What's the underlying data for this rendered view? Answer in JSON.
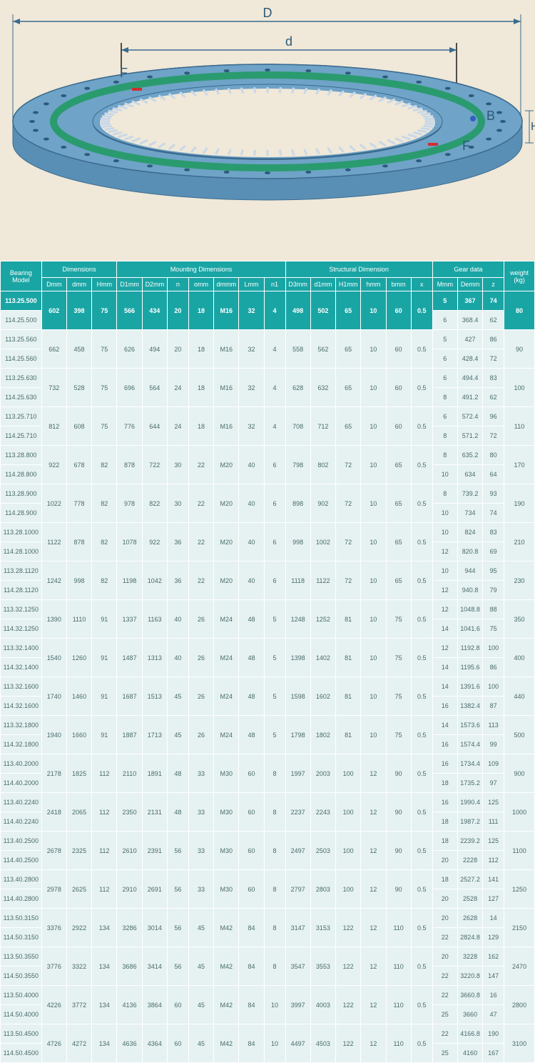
{
  "diagram": {
    "bg_color": "#f0e8d8",
    "ring_outer": "#6fa3c7",
    "ring_edge": "#3b6b8f",
    "ring_inner": "#2a9b6f",
    "teeth": "#ffffff",
    "hole": "#2d5a7a",
    "dim_line": "#3b6b8f",
    "labels": {
      "D": "D",
      "d": "d",
      "F1": "F",
      "F2": "F",
      "B": "B",
      "H": "H"
    },
    "label_fontsize": 16,
    "label_color": "#2d5a7a"
  },
  "table": {
    "header_bg": "#1aa5a5",
    "header_fg": "#ffffff",
    "cell_bg": "#e6f2f2",
    "cell_fg": "#4a6a6a",
    "groups": [
      {
        "label": "Bearing Model",
        "span": 1
      },
      {
        "label": "Dimensions",
        "span": 3
      },
      {
        "label": "Mounting Dimensions",
        "span": 7
      },
      {
        "label": "Structural Dimension",
        "span": 6
      },
      {
        "label": "Gear data",
        "span": 3
      },
      {
        "label": "weight (kg)",
        "span": 1
      }
    ],
    "cols": [
      "",
      "Dmm",
      "dmm",
      "Hmm",
      "D1mm",
      "D2mm",
      "n",
      "omm",
      "dmmm",
      "Lmm",
      "n1",
      "D3mm",
      "d1mm",
      "H1mm",
      "hmm",
      "bmm",
      "x",
      "Mmm",
      "Demm",
      "z",
      ""
    ],
    "pairs": [
      {
        "highlight": true,
        "models": [
          "113.25.500",
          "114.25.500"
        ],
        "shared": [
          "602",
          "398",
          "75",
          "566",
          "434",
          "20",
          "18",
          "M16",
          "32",
          "4",
          "498",
          "502",
          "65",
          "10",
          "60",
          "0.5"
        ],
        "gear": [
          [
            "5",
            "367",
            "74"
          ],
          [
            "6",
            "368.4",
            "62"
          ]
        ],
        "wt": "80"
      },
      {
        "models": [
          "113.25.560",
          "114.25.560"
        ],
        "shared": [
          "662",
          "458",
          "75",
          "626",
          "494",
          "20",
          "18",
          "M16",
          "32",
          "4",
          "558",
          "562",
          "65",
          "10",
          "60",
          "0.5"
        ],
        "gear": [
          [
            "5",
            "427",
            "86"
          ],
          [
            "6",
            "428.4",
            "72"
          ]
        ],
        "wt": "90"
      },
      {
        "models": [
          "113.25.630",
          "114.25.630"
        ],
        "shared": [
          "732",
          "528",
          "75",
          "696",
          "564",
          "24",
          "18",
          "M16",
          "32",
          "4",
          "628",
          "632",
          "65",
          "10",
          "60",
          "0.5"
        ],
        "gear": [
          [
            "6",
            "494.4",
            "83"
          ],
          [
            "8",
            "491.2",
            "62"
          ]
        ],
        "wt": "100"
      },
      {
        "models": [
          "113.25.710",
          "114.25.710"
        ],
        "shared": [
          "812",
          "608",
          "75",
          "776",
          "644",
          "24",
          "18",
          "M16",
          "32",
          "4",
          "708",
          "712",
          "65",
          "10",
          "60",
          "0.5"
        ],
        "gear": [
          [
            "6",
            "572.4",
            "96"
          ],
          [
            "8",
            "571.2",
            "72"
          ]
        ],
        "wt": "110"
      },
      {
        "models": [
          "113.28.800",
          "114.28.800"
        ],
        "shared": [
          "922",
          "678",
          "82",
          "878",
          "722",
          "30",
          "22",
          "M20",
          "40",
          "6",
          "798",
          "802",
          "72",
          "10",
          "65",
          "0.5"
        ],
        "gear": [
          [
            "8",
            "635.2",
            "80"
          ],
          [
            "10",
            "634",
            "64"
          ]
        ],
        "wt": "170"
      },
      {
        "models": [
          "113.28.900",
          "114.28.900"
        ],
        "shared": [
          "1022",
          "778",
          "82",
          "978",
          "822",
          "30",
          "22",
          "M20",
          "40",
          "6",
          "898",
          "902",
          "72",
          "10",
          "65",
          "0.5"
        ],
        "gear": [
          [
            "8",
            "739.2",
            "93"
          ],
          [
            "10",
            "734",
            "74"
          ]
        ],
        "wt": "190"
      },
      {
        "models": [
          "113.28.1000",
          "114.28.1000"
        ],
        "shared": [
          "1122",
          "878",
          "82",
          "1078",
          "922",
          "36",
          "22",
          "M20",
          "40",
          "6",
          "998",
          "1002",
          "72",
          "10",
          "65",
          "0.5"
        ],
        "gear": [
          [
            "10",
            "824",
            "83"
          ],
          [
            "12",
            "820.8",
            "69"
          ]
        ],
        "wt": "210"
      },
      {
        "models": [
          "113.28.1120",
          "114.28.1120"
        ],
        "shared": [
          "1242",
          "998",
          "82",
          "1198",
          "1042",
          "36",
          "22",
          "M20",
          "40",
          "6",
          "1118",
          "1122",
          "72",
          "10",
          "65",
          "0.5"
        ],
        "gear": [
          [
            "10",
            "944",
            "95"
          ],
          [
            "12",
            "940.8",
            "79"
          ]
        ],
        "wt": "230"
      },
      {
        "models": [
          "113.32.1250",
          "114.32.1250"
        ],
        "shared": [
          "1390",
          "1110",
          "91",
          "1337",
          "1163",
          "40",
          "26",
          "M24",
          "48",
          "5",
          "1248",
          "1252",
          "81",
          "10",
          "75",
          "0.5"
        ],
        "gear": [
          [
            "12",
            "1048.8",
            "88"
          ],
          [
            "14",
            "1041.6",
            "75"
          ]
        ],
        "wt": "350"
      },
      {
        "models": [
          "113.32.1400",
          "114.32.1400"
        ],
        "shared": [
          "1540",
          "1260",
          "91",
          "1487",
          "1313",
          "40",
          "26",
          "M24",
          "48",
          "5",
          "1398",
          "1402",
          "81",
          "10",
          "75",
          "0.5"
        ],
        "gear": [
          [
            "12",
            "1192.8",
            "100"
          ],
          [
            "14",
            "1195.6",
            "86"
          ]
        ],
        "wt": "400"
      },
      {
        "models": [
          "113.32.1600",
          "114.32.1600"
        ],
        "shared": [
          "1740",
          "1460",
          "91",
          "1687",
          "1513",
          "45",
          "26",
          "M24",
          "48",
          "5",
          "1598",
          "1602",
          "81",
          "10",
          "75",
          "0.5"
        ],
        "gear": [
          [
            "14",
            "1391.6",
            "100"
          ],
          [
            "16",
            "1382.4",
            "87"
          ]
        ],
        "wt": "440"
      },
      {
        "models": [
          "113.32.1800",
          "114.32.1800"
        ],
        "shared": [
          "1940",
          "1660",
          "91",
          "1887",
          "1713",
          "45",
          "26",
          "M24",
          "48",
          "5",
          "1798",
          "1802",
          "81",
          "10",
          "75",
          "0.5"
        ],
        "gear": [
          [
            "14",
            "1573.6",
            "113"
          ],
          [
            "16",
            "1574.4",
            "99"
          ]
        ],
        "wt": "500"
      },
      {
        "models": [
          "113.40.2000",
          "114.40.2000"
        ],
        "shared": [
          "2178",
          "1825",
          "112",
          "2110",
          "1891",
          "48",
          "33",
          "M30",
          "60",
          "8",
          "1997",
          "2003",
          "100",
          "12",
          "90",
          "0.5"
        ],
        "gear": [
          [
            "16",
            "1734.4",
            "109"
          ],
          [
            "18",
            "1735.2",
            "97"
          ]
        ],
        "wt": "900"
      },
      {
        "models": [
          "113.40.2240",
          "114.40.2240"
        ],
        "shared": [
          "2418",
          "2065",
          "112",
          "2350",
          "2131",
          "48",
          "33",
          "M30",
          "60",
          "8",
          "2237",
          "2243",
          "100",
          "12",
          "90",
          "0.5"
        ],
        "gear": [
          [
            "16",
            "1990.4",
            "125"
          ],
          [
            "18",
            "1987.2",
            "111"
          ]
        ],
        "wt": "1000"
      },
      {
        "models": [
          "113.40.2500",
          "114.40.2500"
        ],
        "shared": [
          "2678",
          "2325",
          "112",
          "2610",
          "2391",
          "56",
          "33",
          "M30",
          "60",
          "8",
          "2497",
          "2503",
          "100",
          "12",
          "90",
          "0.5"
        ],
        "gear": [
          [
            "18",
            "2239.2",
            "125"
          ],
          [
            "20",
            "2228",
            "112"
          ]
        ],
        "wt": "1100"
      },
      {
        "models": [
          "113.40.2800",
          "114.40.2800"
        ],
        "shared": [
          "2978",
          "2625",
          "112",
          "2910",
          "2691",
          "56",
          "33",
          "M30",
          "60",
          "8",
          "2797",
          "2803",
          "100",
          "12",
          "90",
          "0.5"
        ],
        "gear": [
          [
            "18",
            "2527.2",
            "141"
          ],
          [
            "20",
            "2528",
            "127"
          ]
        ],
        "wt": "1250"
      },
      {
        "models": [
          "113.50.3150",
          "114.50.3150"
        ],
        "shared": [
          "3376",
          "2922",
          "134",
          "3286",
          "3014",
          "56",
          "45",
          "M42",
          "84",
          "8",
          "3147",
          "3153",
          "122",
          "12",
          "110",
          "0.5"
        ],
        "gear": [
          [
            "20",
            "2628",
            "14"
          ],
          [
            "22",
            "2824.8",
            "129"
          ]
        ],
        "wt": "2150"
      },
      {
        "models": [
          "113.50.3550",
          "114.50.3550"
        ],
        "shared": [
          "3776",
          "3322",
          "134",
          "3686",
          "3414",
          "56",
          "45",
          "M42",
          "84",
          "8",
          "3547",
          "3553",
          "122",
          "12",
          "110",
          "0.5"
        ],
        "gear": [
          [
            "20",
            "3228",
            "162"
          ],
          [
            "22",
            "3220.8",
            "147"
          ]
        ],
        "wt": "2470"
      },
      {
        "models": [
          "113.50.4000",
          "114.50.4000"
        ],
        "shared": [
          "4226",
          "3772",
          "134",
          "4136",
          "3864",
          "60",
          "45",
          "M42",
          "84",
          "10",
          "3997",
          "4003",
          "122",
          "12",
          "110",
          "0.5"
        ],
        "gear": [
          [
            "22",
            "3660.8",
            "16"
          ],
          [
            "25",
            "3660",
            "47"
          ]
        ],
        "wt": "2800"
      },
      {
        "models": [
          "113.50.4500",
          "114.50.4500"
        ],
        "shared": [
          "4726",
          "4272",
          "134",
          "4636",
          "4364",
          "60",
          "45",
          "M42",
          "84",
          "10",
          "4497",
          "4503",
          "122",
          "12",
          "110",
          "0.5"
        ],
        "gear": [
          [
            "22",
            "4166.8",
            "190"
          ],
          [
            "25",
            "4160",
            "167"
          ]
        ],
        "wt": "3100"
      }
    ]
  }
}
